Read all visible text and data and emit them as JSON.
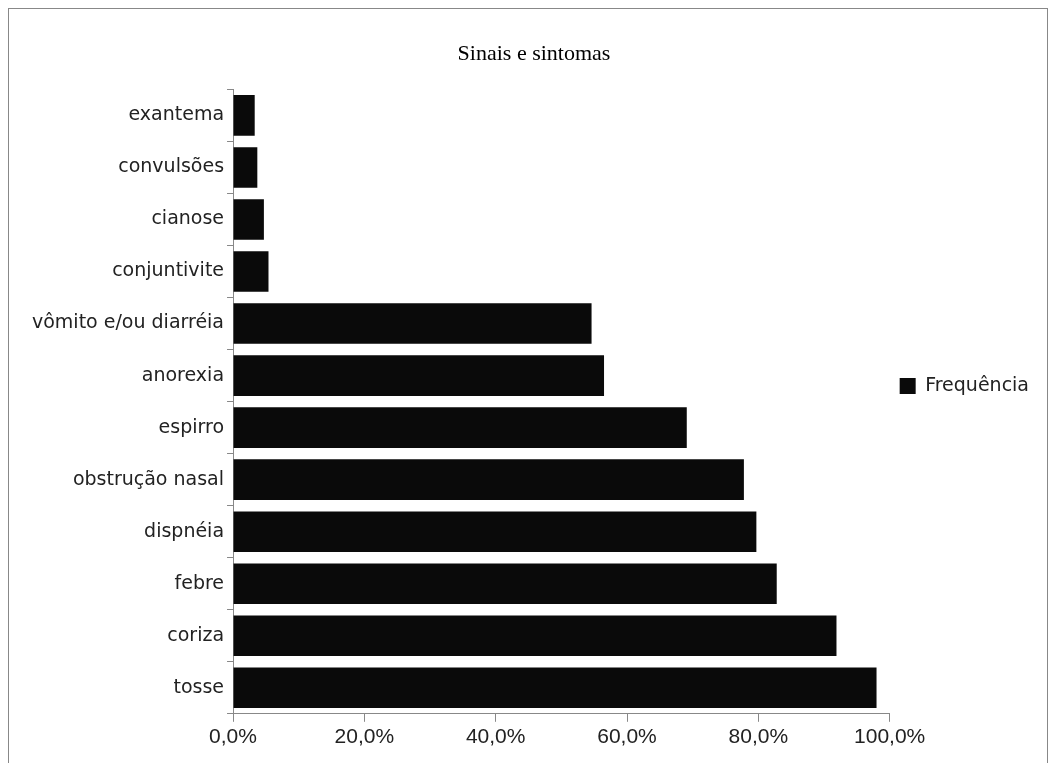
{
  "chart_data": {
    "type": "bar",
    "orientation": "horizontal",
    "title": "Sinais e sintomas",
    "categories": [
      "exantema",
      "convulsões",
      "cianose",
      "conjuntivite",
      "vômito e/ou diarréia",
      "anorexia",
      "espirro",
      "obstrução nasal",
      "dispnéia",
      "febre",
      "coriza",
      "tosse"
    ],
    "series": [
      {
        "name": "Frequência",
        "color": "#0a0a0a",
        "values": [
          3.3,
          3.7,
          4.7,
          5.4,
          54.6,
          56.5,
          69.1,
          77.8,
          79.7,
          82.8,
          91.9,
          98.0
        ]
      }
    ],
    "xlim": [
      0,
      100
    ],
    "xticks": [
      {
        "value": 0,
        "label": "0,0%"
      },
      {
        "value": 20,
        "label": "20,0%"
      },
      {
        "value": 40,
        "label": "40,0%"
      },
      {
        "value": 60,
        "label": "60,0%"
      },
      {
        "value": 80,
        "label": "80,0%"
      },
      {
        "value": 100,
        "label": "100,0%"
      }
    ],
    "grid": false,
    "legend": "right"
  }
}
